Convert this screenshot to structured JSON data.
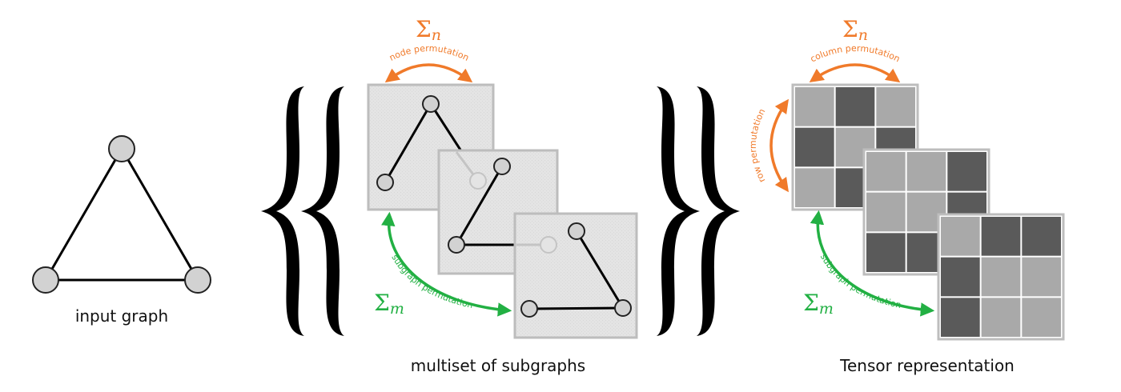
{
  "captions": {
    "input": "input graph",
    "multiset": "multiset of subgraphs",
    "tensor": "Tensor representation"
  },
  "symbols": {
    "sigma": "Σ",
    "n": "n",
    "m": "m"
  },
  "arrow_labels": {
    "node_permutation": "node permutation",
    "subgraph_permutation": "subgraph permutation",
    "column_permutation": "column permutation",
    "row_permutation": "row permutation"
  },
  "colors": {
    "orange": "#f07a2a",
    "green": "#22b043",
    "cell_light": "#a9a9a9",
    "cell_dark": "#5a5a5a",
    "panel_bg": "#e6e6e6",
    "panel_border": "#bdbdbd",
    "node_fill": "#d2d2d2"
  },
  "matrices": [
    [
      [
        "light",
        "dark",
        "light"
      ],
      [
        "dark",
        "light",
        "dark"
      ],
      [
        "light",
        "dark",
        "light"
      ]
    ],
    [
      [
        "light",
        "light",
        "dark"
      ],
      [
        "light",
        "light",
        "dark"
      ],
      [
        "dark",
        "dark",
        "light"
      ]
    ],
    [
      [
        "light",
        "dark",
        "dark"
      ],
      [
        "dark",
        "light",
        "light"
      ],
      [
        "dark",
        "light",
        "light"
      ]
    ]
  ]
}
